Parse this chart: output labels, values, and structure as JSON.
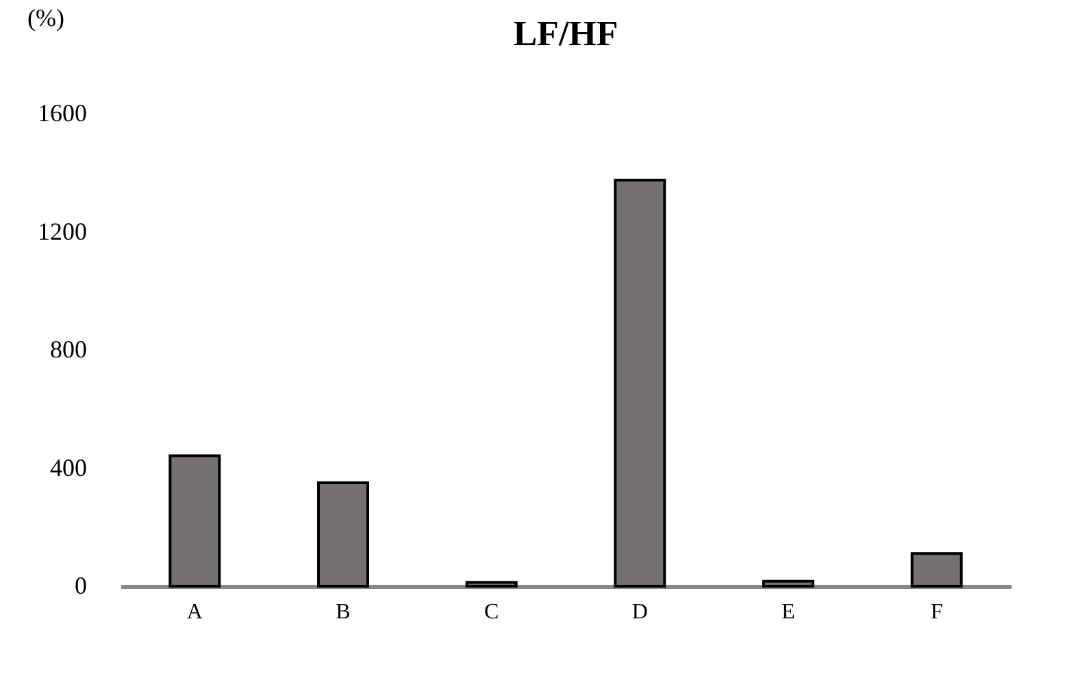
{
  "chart_data": {
    "type": "bar",
    "title": "LF/HF",
    "ylabel": "(%)",
    "categories": [
      "A",
      "B",
      "C",
      "D",
      "E",
      "F"
    ],
    "values": [
      442,
      350,
      13,
      1375,
      17,
      111
    ],
    "color": "#757170",
    "ylim": [
      0,
      1600
    ],
    "yticks": [
      0,
      400,
      800,
      1200,
      1600
    ],
    "grid": false
  }
}
